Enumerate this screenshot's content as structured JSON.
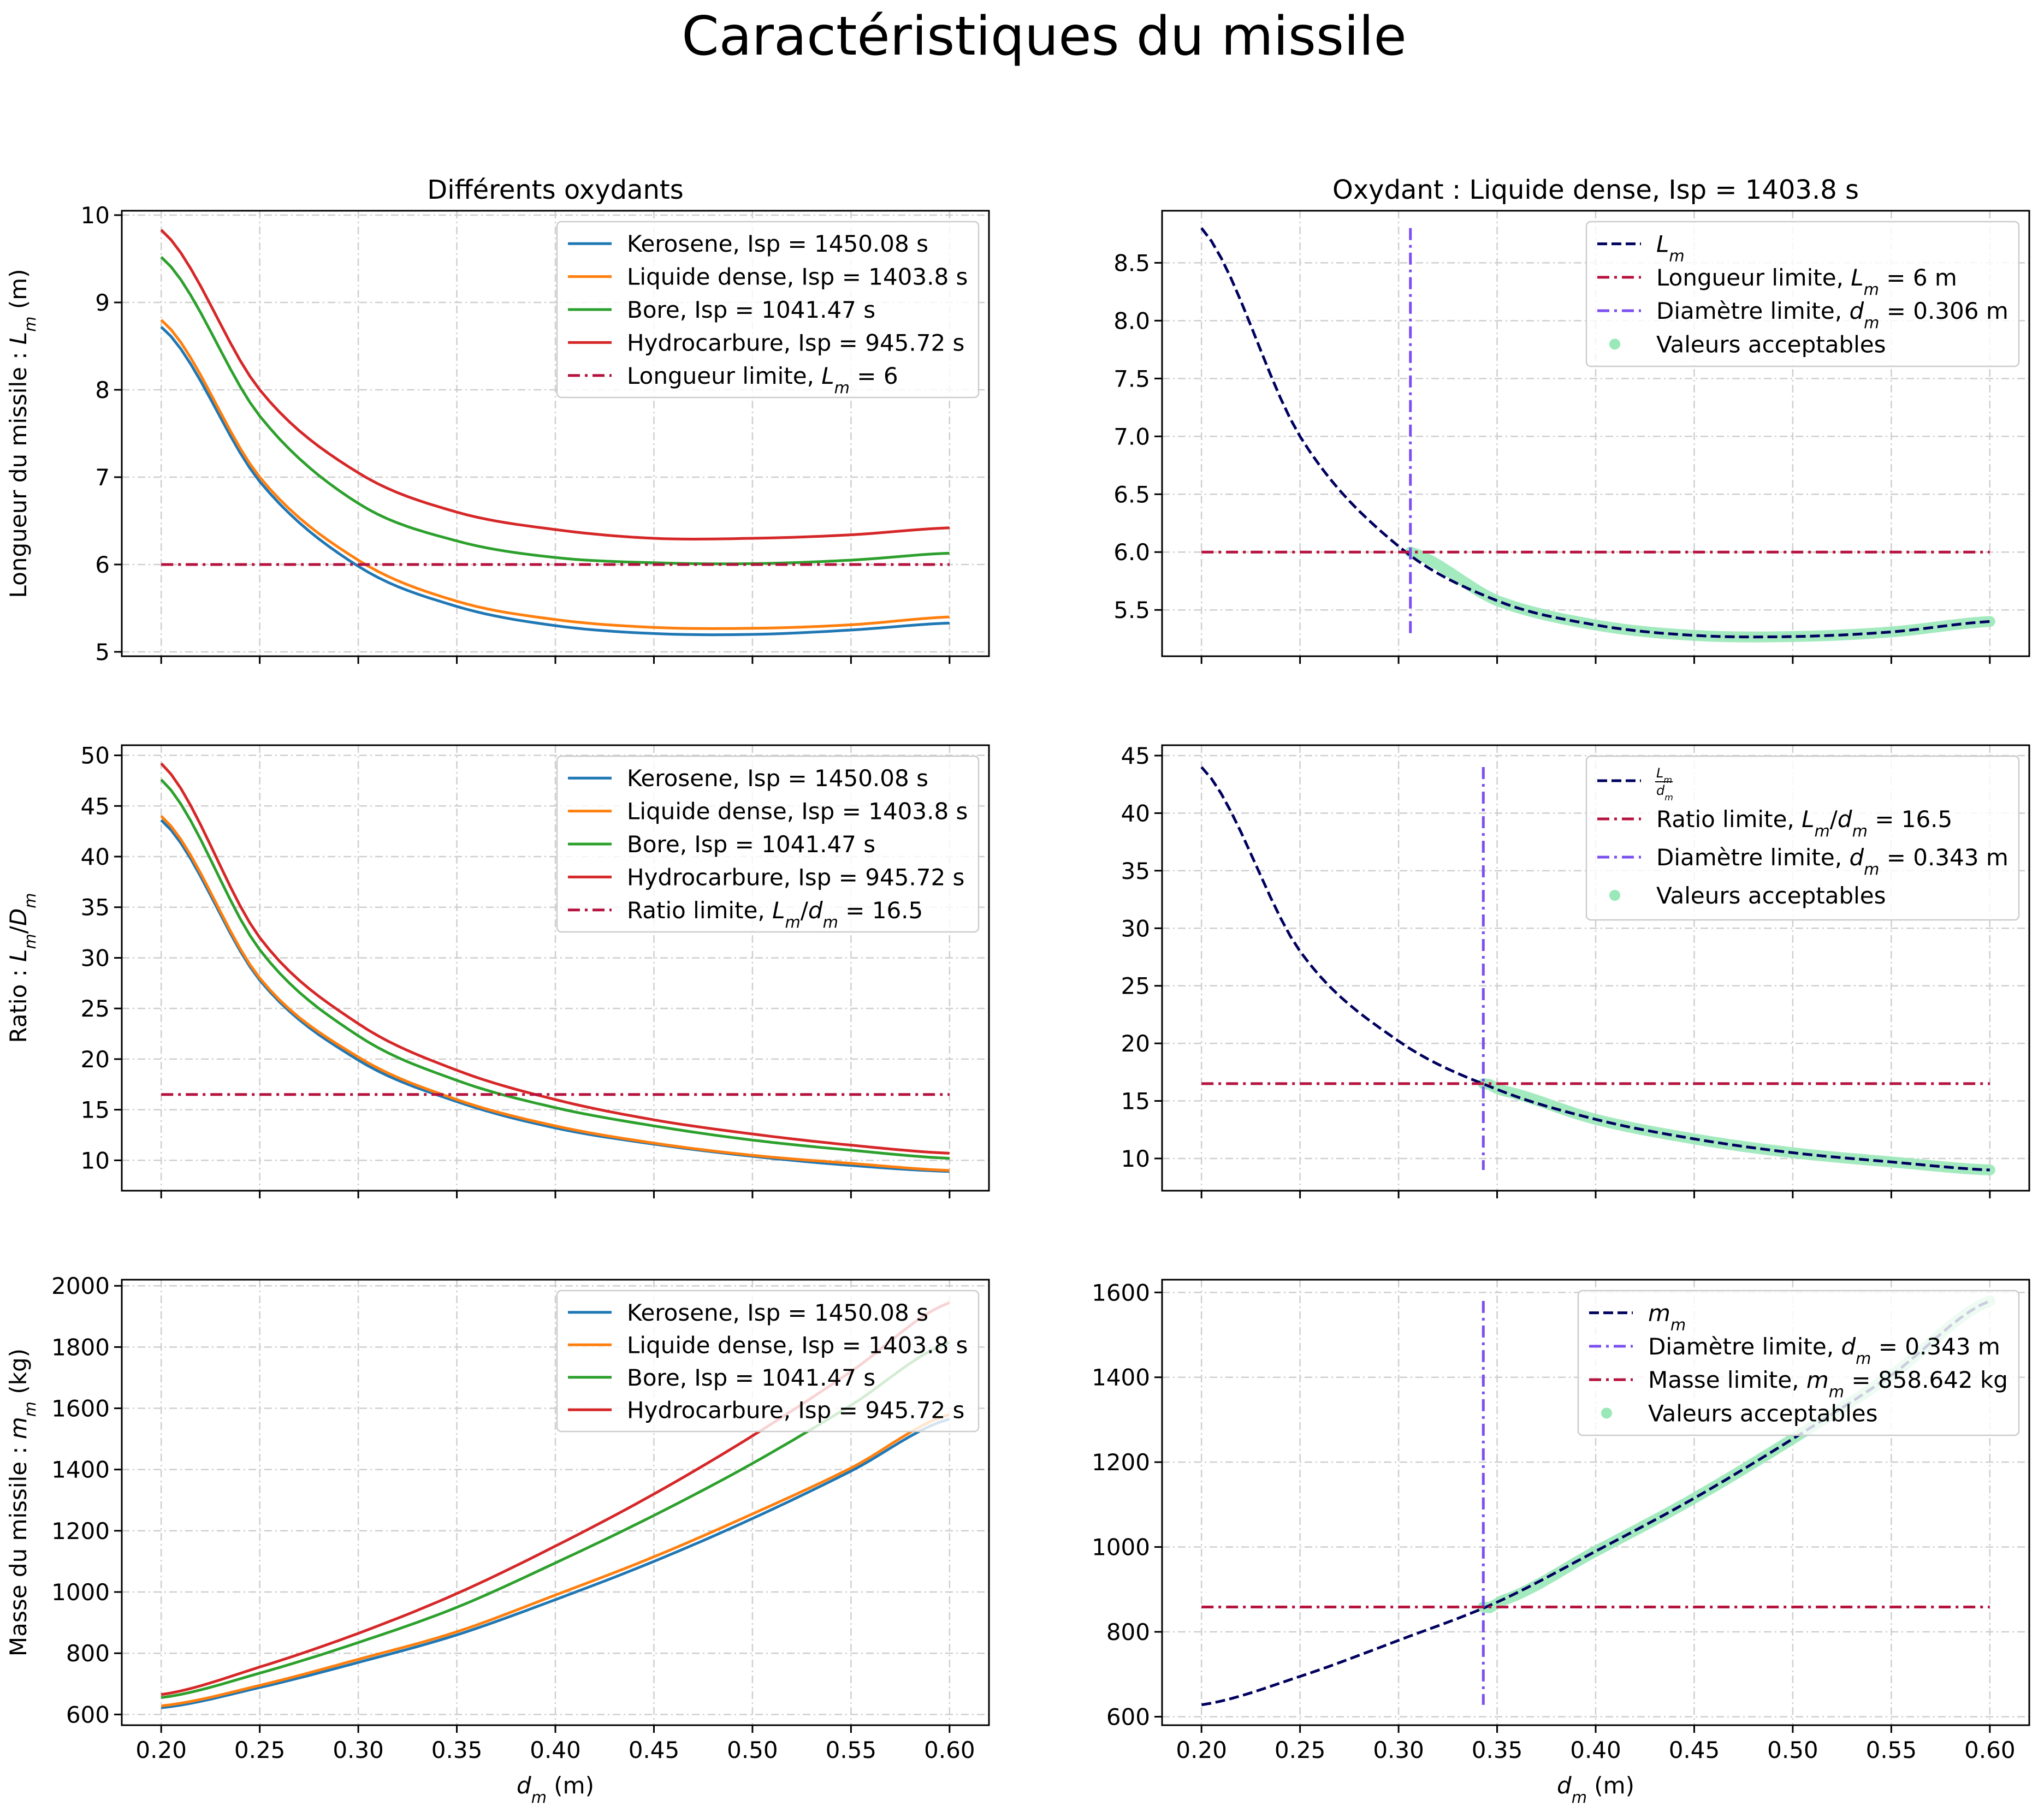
{
  "figure": {
    "title": "Caractéristiques du missile"
  },
  "styles": {
    "Kerosene": {
      "color": "#1f77b4",
      "dash": "solid"
    },
    "Liquide": {
      "color": "#ff7f0e",
      "dash": "solid"
    },
    "Bore": {
      "color": "#2ca02c",
      "dash": "solid"
    },
    "Hydro": {
      "color": "#d62728",
      "dash": "solid"
    },
    "curve": {
      "color": "#00005e",
      "dash": "dashed"
    },
    "limitH": {
      "color": "#b5123e",
      "dash": "dashdot"
    },
    "limitV": {
      "color": "#7b4ff0",
      "dash": "dashdot"
    },
    "accept": {
      "color": "#9ae8b8"
    }
  },
  "chart_data": [
    {
      "id": "p1",
      "type": "line",
      "title": "Différents oxydants",
      "xlabel": "",
      "ylabel": "Longueur du missile : L_m (m)",
      "ylabel_parts": [
        [
          "Longueur du missile : ",
          ""
        ],
        [
          "L",
          "i"
        ],
        [
          "m",
          "sub"
        ],
        [
          " (m)",
          ""
        ]
      ],
      "xlim": [
        0.18,
        0.62
      ],
      "ylim": [
        4.95,
        10.05
      ],
      "xticks": [
        0.2,
        0.25,
        0.3,
        0.35,
        0.4,
        0.45,
        0.5,
        0.55,
        0.6
      ],
      "xticklabels": [],
      "yticks": [
        5,
        6,
        7,
        8,
        9,
        10
      ],
      "yticklabels": [
        "5",
        "6",
        "7",
        "8",
        "9",
        "10"
      ],
      "grid": true,
      "legend": "upper right",
      "x": [
        0.2,
        0.25,
        0.3,
        0.35,
        0.4,
        0.45,
        0.5,
        0.55,
        0.6
      ],
      "series": [
        {
          "name": "Kerosene, Isp = 1450.08 s",
          "style": "Kerosene",
          "values": [
            8.72,
            6.95,
            5.98,
            5.52,
            5.3,
            5.21,
            5.2,
            5.25,
            5.33
          ]
        },
        {
          "name": "Liquide dense, Isp = 1403.8 s",
          "style": "Liquide",
          "values": [
            8.8,
            7.0,
            6.05,
            5.58,
            5.37,
            5.28,
            5.27,
            5.31,
            5.4
          ]
        },
        {
          "name": "Bore, Isp = 1041.47 s",
          "style": "Bore",
          "values": [
            9.52,
            7.7,
            6.7,
            6.27,
            6.08,
            6.02,
            6.01,
            6.05,
            6.13
          ]
        },
        {
          "name": "Hydrocarbure, Isp = 945.72 s",
          "style": "Hydro",
          "values": [
            9.83,
            8.0,
            7.05,
            6.6,
            6.4,
            6.3,
            6.3,
            6.34,
            6.42
          ]
        },
        {
          "name": "Longueur limite, L_m = 6",
          "name_parts": [
            [
              "Longueur limite, ",
              ""
            ],
            [
              "L",
              "i"
            ],
            [
              "m",
              "sub"
            ],
            [
              " = 6",
              ""
            ]
          ],
          "style": "limitH",
          "values": [
            6,
            6,
            6,
            6,
            6,
            6,
            6,
            6,
            6
          ]
        }
      ]
    },
    {
      "id": "p2",
      "type": "line",
      "title": "Oxydant : Liquide dense, Isp = 1403.8 s",
      "xlabel": "",
      "ylabel": "",
      "xlim": [
        0.18,
        0.62
      ],
      "ylim": [
        5.1,
        8.95
      ],
      "xticks": [
        0.2,
        0.25,
        0.3,
        0.35,
        0.4,
        0.45,
        0.5,
        0.55,
        0.6
      ],
      "xticklabels": [],
      "yticks": [
        5.5,
        6.0,
        6.5,
        7.0,
        7.5,
        8.0,
        8.5
      ],
      "yticklabels": [
        "5.5",
        "6.0",
        "6.5",
        "7.0",
        "7.5",
        "8.0",
        "8.5"
      ],
      "grid": true,
      "legend": "upper right",
      "x": [
        0.2,
        0.25,
        0.3,
        0.35,
        0.4,
        0.45,
        0.5,
        0.55,
        0.6
      ],
      "series": [
        {
          "name": "L_m",
          "name_parts": [
            [
              "L",
              "i"
            ],
            [
              "m",
              "sub"
            ]
          ],
          "style": "curve",
          "values": [
            8.8,
            7.0,
            6.05,
            5.58,
            5.37,
            5.28,
            5.27,
            5.31,
            5.4
          ]
        },
        {
          "name": "Longueur limite, L_m = 6 m",
          "name_parts": [
            [
              "Longueur limite, ",
              ""
            ],
            [
              "L",
              "i"
            ],
            [
              "m",
              "sub"
            ],
            [
              " = 6 m",
              ""
            ]
          ],
          "style": "limitH",
          "values": [
            6,
            6,
            6,
            6,
            6,
            6,
            6,
            6,
            6
          ]
        },
        {
          "name": "Diamètre limite, d_m = 0.306 m",
          "name_parts": [
            [
              "Diamètre limite, ",
              ""
            ],
            [
              "d",
              "i"
            ],
            [
              "m",
              "sub"
            ],
            [
              " = 0.306 m",
              ""
            ]
          ],
          "style": "limitV",
          "kind": "vline",
          "x": 0.306,
          "range": [
            5.28,
            8.8
          ]
        },
        {
          "name": "Valeurs acceptables",
          "style": "accept",
          "kind": "band",
          "x": [
            0.306,
            0.35,
            0.4,
            0.45,
            0.5,
            0.55,
            0.6
          ],
          "values": [
            6.0,
            5.58,
            5.37,
            5.28,
            5.27,
            5.31,
            5.4
          ]
        }
      ]
    },
    {
      "id": "p3",
      "type": "line",
      "title": "",
      "xlabel": "",
      "ylabel": "Ratio : L_m/D_m",
      "ylabel_parts": [
        [
          "Ratio : ",
          ""
        ],
        [
          "L",
          "i"
        ],
        [
          "m",
          "sub"
        ],
        [
          "/",
          ""
        ],
        [
          "D",
          "i"
        ],
        [
          "m",
          "sub"
        ]
      ],
      "xlim": [
        0.18,
        0.62
      ],
      "ylim": [
        7,
        51
      ],
      "xticks": [
        0.2,
        0.25,
        0.3,
        0.35,
        0.4,
        0.45,
        0.5,
        0.55,
        0.6
      ],
      "xticklabels": [],
      "yticks": [
        10,
        15,
        20,
        25,
        30,
        35,
        40,
        45,
        50
      ],
      "yticklabels": [
        "10",
        "15",
        "20",
        "25",
        "30",
        "35",
        "40",
        "45",
        "50"
      ],
      "grid": true,
      "legend": "upper right",
      "x": [
        0.2,
        0.25,
        0.3,
        0.35,
        0.4,
        0.45,
        0.5,
        0.55,
        0.6
      ],
      "series": [
        {
          "name": "Kerosene, Isp = 1450.08 s",
          "style": "Kerosene",
          "values": [
            43.6,
            27.8,
            19.9,
            15.8,
            13.2,
            11.6,
            10.4,
            9.5,
            8.9
          ]
        },
        {
          "name": "Liquide dense, Isp = 1403.8 s",
          "style": "Liquide",
          "values": [
            44.0,
            28.0,
            20.2,
            16.0,
            13.4,
            11.7,
            10.5,
            9.7,
            9.0
          ]
        },
        {
          "name": "Bore, Isp = 1041.47 s",
          "style": "Bore",
          "values": [
            47.6,
            30.8,
            22.3,
            17.9,
            15.2,
            13.4,
            12.0,
            11.0,
            10.2
          ]
        },
        {
          "name": "Hydrocarbure, Isp = 945.72 s",
          "style": "Hydro",
          "values": [
            49.2,
            32.0,
            23.5,
            18.9,
            16.0,
            14.0,
            12.6,
            11.5,
            10.7
          ]
        },
        {
          "name": "Ratio limite, L_m/d_m = 16.5",
          "name_parts": [
            [
              "Ratio limite, ",
              ""
            ],
            [
              "L",
              "i"
            ],
            [
              "m",
              "sub"
            ],
            [
              "/",
              ""
            ],
            [
              "d",
              "i"
            ],
            [
              "m",
              "sub"
            ],
            [
              " = 16.5",
              ""
            ]
          ],
          "style": "limitH",
          "values": [
            16.5,
            16.5,
            16.5,
            16.5,
            16.5,
            16.5,
            16.5,
            16.5,
            16.5
          ]
        }
      ]
    },
    {
      "id": "p4",
      "type": "line",
      "title": "",
      "xlabel": "",
      "ylabel": "",
      "xlim": [
        0.18,
        0.62
      ],
      "ylim": [
        7.2,
        45.9
      ],
      "xticks": [
        0.2,
        0.25,
        0.3,
        0.35,
        0.4,
        0.45,
        0.5,
        0.55,
        0.6
      ],
      "xticklabels": [],
      "yticks": [
        10,
        15,
        20,
        25,
        30,
        35,
        40,
        45
      ],
      "yticklabels": [
        "10",
        "15",
        "20",
        "25",
        "30",
        "35",
        "40",
        "45"
      ],
      "grid": true,
      "legend": "upper right",
      "x": [
        0.2,
        0.25,
        0.3,
        0.35,
        0.4,
        0.45,
        0.5,
        0.55,
        0.6
      ],
      "series": [
        {
          "name": "L_m/d_m",
          "name_parts": [
            [
              "L_m/d_m",
              "frac"
            ]
          ],
          "style": "curve",
          "values": [
            44.0,
            28.0,
            20.2,
            16.0,
            13.4,
            11.7,
            10.5,
            9.7,
            9.0
          ]
        },
        {
          "name": "Ratio limite, L_m/d_m = 16.5",
          "name_parts": [
            [
              "Ratio limite, ",
              ""
            ],
            [
              "L",
              "i"
            ],
            [
              "m",
              "sub"
            ],
            [
              "/",
              ""
            ],
            [
              "d",
              "i"
            ],
            [
              "m",
              "sub"
            ],
            [
              " = 16.5",
              ""
            ]
          ],
          "style": "limitH",
          "values": [
            16.5,
            16.5,
            16.5,
            16.5,
            16.5,
            16.5,
            16.5,
            16.5,
            16.5
          ]
        },
        {
          "name": "Diamètre limite, d_m = 0.343 m",
          "name_parts": [
            [
              "Diamètre limite, ",
              ""
            ],
            [
              "d",
              "i"
            ],
            [
              "m",
              "sub"
            ],
            [
              " = 0.343 m",
              ""
            ]
          ],
          "style": "limitV",
          "kind": "vline",
          "x": 0.343,
          "range": [
            9.0,
            44.0
          ]
        },
        {
          "name": "Valeurs acceptables",
          "style": "accept",
          "kind": "band",
          "x": [
            0.343,
            0.35,
            0.4,
            0.45,
            0.5,
            0.55,
            0.6
          ],
          "values": [
            16.5,
            16.0,
            13.4,
            11.7,
            10.5,
            9.7,
            9.0
          ]
        }
      ]
    },
    {
      "id": "p5",
      "type": "line",
      "title": "",
      "xlabel": "d_m (m)",
      "xlabel_parts": [
        [
          "d",
          "i"
        ],
        [
          "m",
          "sub"
        ],
        [
          " (m)",
          ""
        ]
      ],
      "ylabel": "Masse du missile : m_m (kg)",
      "ylabel_parts": [
        [
          "Masse du missile : ",
          ""
        ],
        [
          "m",
          "i"
        ],
        [
          "m",
          "sub"
        ],
        [
          " (kg)",
          ""
        ]
      ],
      "xlim": [
        0.18,
        0.62
      ],
      "ylim": [
        565,
        2020
      ],
      "xticks": [
        0.2,
        0.25,
        0.3,
        0.35,
        0.4,
        0.45,
        0.5,
        0.55,
        0.6
      ],
      "xticklabels": [
        "0.20",
        "0.25",
        "0.30",
        "0.35",
        "0.40",
        "0.45",
        "0.50",
        "0.55",
        "0.60"
      ],
      "yticks": [
        600,
        800,
        1000,
        1200,
        1400,
        1600,
        1800,
        2000
      ],
      "yticklabels": [
        "600",
        "800",
        "1000",
        "1200",
        "1400",
        "1600",
        "1800",
        "2000"
      ],
      "grid": true,
      "legend": "upper right",
      "x": [
        0.2,
        0.25,
        0.3,
        0.35,
        0.4,
        0.45,
        0.5,
        0.55,
        0.6
      ],
      "series": [
        {
          "name": "Kerosene, Isp = 1450.08 s",
          "style": "Kerosene",
          "values": [
            622,
            688,
            770,
            860,
            975,
            1100,
            1240,
            1395,
            1565
          ]
        },
        {
          "name": "Liquide dense, Isp = 1403.8 s",
          "style": "Liquide",
          "values": [
            628,
            695,
            780,
            870,
            990,
            1115,
            1255,
            1405,
            1580
          ]
        },
        {
          "name": "Bore, Isp = 1041.47 s",
          "style": "Bore",
          "values": [
            655,
            735,
            835,
            950,
            1095,
            1250,
            1420,
            1610,
            1815
          ]
        },
        {
          "name": "Hydrocarbure, Isp = 945.72 s",
          "style": "Hydro",
          "values": [
            665,
            755,
            865,
            995,
            1150,
            1320,
            1510,
            1720,
            1945
          ]
        }
      ]
    },
    {
      "id": "p6",
      "type": "line",
      "title": "",
      "xlabel": "d_m (m)",
      "xlabel_parts": [
        [
          "d",
          "i"
        ],
        [
          "m",
          "sub"
        ],
        [
          " (m)",
          ""
        ]
      ],
      "ylabel": "",
      "xlim": [
        0.18,
        0.62
      ],
      "ylim": [
        580,
        1630
      ],
      "xticks": [
        0.2,
        0.25,
        0.3,
        0.35,
        0.4,
        0.45,
        0.5,
        0.55,
        0.6
      ],
      "xticklabels": [
        "0.20",
        "0.25",
        "0.30",
        "0.35",
        "0.40",
        "0.45",
        "0.50",
        "0.55",
        "0.60"
      ],
      "yticks": [
        600,
        800,
        1000,
        1200,
        1400,
        1600
      ],
      "yticklabels": [
        "600",
        "800",
        "1000",
        "1200",
        "1400",
        "1600"
      ],
      "grid": true,
      "legend": "upper right",
      "x": [
        0.2,
        0.25,
        0.3,
        0.35,
        0.4,
        0.45,
        0.5,
        0.55,
        0.6
      ],
      "series": [
        {
          "name": "m_m",
          "name_parts": [
            [
              "m",
              "i"
            ],
            [
              "m",
              "sub"
            ]
          ],
          "style": "curve",
          "values": [
            628,
            695,
            780,
            870,
            990,
            1115,
            1255,
            1405,
            1580
          ]
        },
        {
          "name": "Diamètre limite, d_m = 0.343 m",
          "name_parts": [
            [
              "Diamètre limite, ",
              ""
            ],
            [
              "d",
              "i"
            ],
            [
              "m",
              "sub"
            ],
            [
              " = 0.343 m",
              ""
            ]
          ],
          "style": "limitV",
          "kind": "vline",
          "x": 0.343,
          "range": [
            628,
            1580
          ]
        },
        {
          "name": "Masse limite, m_m = 858.642 kg",
          "name_parts": [
            [
              "Masse limite, ",
              ""
            ],
            [
              "m",
              "i"
            ],
            [
              "m",
              "sub"
            ],
            [
              " = 858.642 kg",
              ""
            ]
          ],
          "style": "limitH",
          "values": [
            858.642,
            858.642,
            858.642,
            858.642,
            858.642,
            858.642,
            858.642,
            858.642,
            858.642
          ]
        },
        {
          "name": "Valeurs acceptables",
          "style": "accept",
          "kind": "band",
          "x": [
            0.343,
            0.35,
            0.4,
            0.45,
            0.5,
            0.55,
            0.6
          ],
          "values": [
            858.642,
            870,
            990,
            1115,
            1255,
            1405,
            1580
          ]
        }
      ]
    }
  ]
}
